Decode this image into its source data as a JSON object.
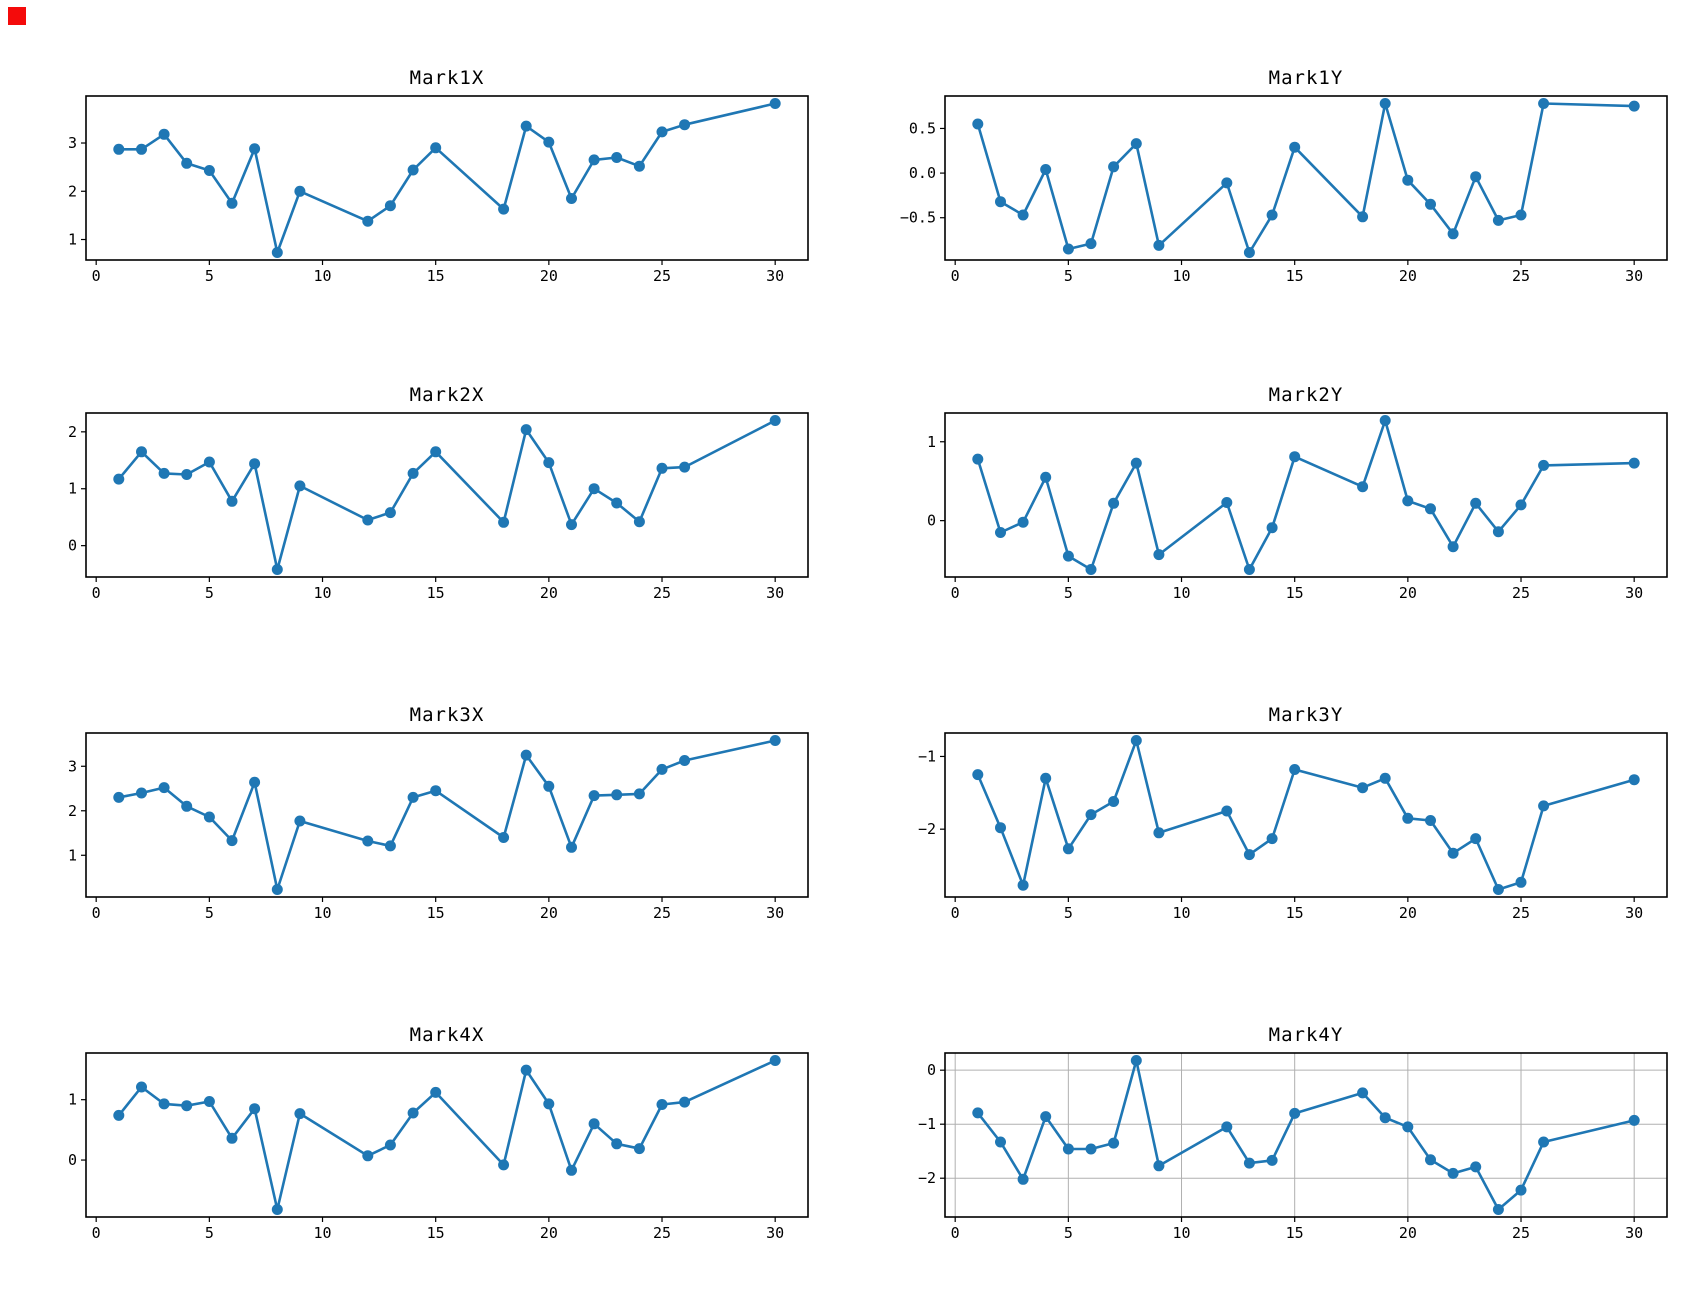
{
  "figure": {
    "background": "#ffffff",
    "line_color": "#1f77b4",
    "marker_color": "#1f77b4",
    "axis_color": "#000000",
    "grid_color": "#b0b0b0",
    "red_marker_color": "#f40b0b"
  },
  "chart_data": [
    {
      "type": "line",
      "title": "Mark1X",
      "x": [
        1,
        2,
        3,
        4,
        5,
        6,
        7,
        8,
        9,
        12,
        13,
        14,
        15,
        18,
        19,
        20,
        21,
        22,
        23,
        24,
        25,
        26,
        30
      ],
      "y": [
        2.87,
        2.87,
        3.18,
        2.58,
        2.43,
        1.75,
        2.88,
        0.73,
        2.0,
        1.38,
        1.7,
        2.44,
        2.9,
        1.63,
        3.35,
        3.02,
        1.85,
        2.65,
        2.7,
        2.52,
        3.23,
        3.38,
        3.82
      ],
      "xlim": [
        -0.45,
        31.45
      ],
      "ylim": [
        0.5755,
        3.9745
      ],
      "x_ticks": [
        0,
        5,
        10,
        15,
        20,
        25,
        30
      ],
      "x_tick_labels": [
        "0",
        "5",
        "10",
        "15",
        "20",
        "25",
        "30"
      ],
      "y_ticks": [
        1,
        2,
        3
      ],
      "y_tick_labels": [
        "1",
        "2",
        "3"
      ],
      "grid": false,
      "legend": null
    },
    {
      "type": "line",
      "title": "Mark1Y",
      "x": [
        1,
        2,
        3,
        4,
        5,
        6,
        7,
        8,
        9,
        12,
        13,
        14,
        15,
        18,
        19,
        20,
        21,
        22,
        23,
        24,
        25,
        26,
        30
      ],
      "y": [
        0.55,
        -0.32,
        -0.47,
        0.04,
        -0.85,
        -0.79,
        0.07,
        0.33,
        -0.81,
        -0.11,
        -0.89,
        -0.47,
        0.29,
        -0.49,
        0.78,
        -0.08,
        -0.35,
        -0.68,
        -0.04,
        -0.53,
        -0.47,
        0.78,
        0.75
      ],
      "xlim": [
        -0.45,
        31.45
      ],
      "ylim": [
        -0.9735,
        0.8635
      ],
      "x_ticks": [
        0,
        5,
        10,
        15,
        20,
        25,
        30
      ],
      "x_tick_labels": [
        "0",
        "5",
        "10",
        "15",
        "20",
        "25",
        "30"
      ],
      "y_ticks": [
        0.5,
        0.0,
        -0.5
      ],
      "y_tick_labels": [
        "0.5",
        "0.0",
        "−0.5"
      ],
      "grid": false,
      "legend": null
    },
    {
      "type": "line",
      "title": "Mark2X",
      "x": [
        1,
        2,
        3,
        4,
        5,
        6,
        7,
        8,
        9,
        12,
        13,
        14,
        15,
        18,
        19,
        20,
        21,
        22,
        23,
        24,
        25,
        26,
        30
      ],
      "y": [
        1.17,
        1.65,
        1.27,
        1.25,
        1.47,
        0.78,
        1.44,
        -0.42,
        1.05,
        0.45,
        0.58,
        1.27,
        1.65,
        0.41,
        2.04,
        1.46,
        0.37,
        1.0,
        0.75,
        0.42,
        1.36,
        1.38,
        2.2
      ],
      "xlim": [
        -0.45,
        31.45
      ],
      "ylim": [
        -0.551,
        2.331
      ],
      "x_ticks": [
        0,
        5,
        10,
        15,
        20,
        25,
        30
      ],
      "x_tick_labels": [
        "0",
        "5",
        "10",
        "15",
        "20",
        "25",
        "30"
      ],
      "y_ticks": [
        0,
        1,
        2
      ],
      "y_tick_labels": [
        "0",
        "1",
        "2"
      ],
      "grid": false,
      "legend": null
    },
    {
      "type": "line",
      "title": "Mark2Y",
      "x": [
        1,
        2,
        3,
        4,
        5,
        6,
        7,
        8,
        9,
        12,
        13,
        14,
        15,
        18,
        19,
        20,
        21,
        22,
        23,
        24,
        25,
        26,
        30
      ],
      "y": [
        0.78,
        -0.15,
        -0.02,
        0.55,
        -0.45,
        -0.62,
        0.22,
        0.73,
        -0.43,
        0.23,
        -0.62,
        -0.09,
        0.81,
        0.43,
        1.27,
        0.25,
        0.15,
        -0.33,
        0.22,
        -0.14,
        0.2,
        0.7,
        0.73
      ],
      "xlim": [
        -0.45,
        31.45
      ],
      "ylim": [
        -0.7145,
        1.3645
      ],
      "x_ticks": [
        0,
        5,
        10,
        15,
        20,
        25,
        30
      ],
      "x_tick_labels": [
        "0",
        "5",
        "10",
        "15",
        "20",
        "25",
        "30"
      ],
      "y_ticks": [
        0,
        1
      ],
      "y_tick_labels": [
        "0",
        "1"
      ],
      "grid": false,
      "legend": null
    },
    {
      "type": "line",
      "title": "Mark3X",
      "x": [
        1,
        2,
        3,
        4,
        5,
        6,
        7,
        8,
        9,
        12,
        13,
        14,
        15,
        18,
        19,
        20,
        21,
        22,
        23,
        24,
        25,
        26,
        30
      ],
      "y": [
        2.3,
        2.4,
        2.52,
        2.1,
        1.86,
        1.33,
        2.64,
        0.23,
        1.77,
        1.32,
        1.21,
        2.3,
        2.45,
        1.4,
        3.25,
        2.55,
        1.18,
        2.34,
        2.36,
        2.38,
        2.93,
        3.13,
        3.58
      ],
      "xlim": [
        -0.45,
        31.45
      ],
      "ylim": [
        0.0625,
        3.7475
      ],
      "x_ticks": [
        0,
        5,
        10,
        15,
        20,
        25,
        30
      ],
      "x_tick_labels": [
        "0",
        "5",
        "10",
        "15",
        "20",
        "25",
        "30"
      ],
      "y_ticks": [
        1,
        2,
        3
      ],
      "y_tick_labels": [
        "1",
        "2",
        "3"
      ],
      "grid": false,
      "legend": null
    },
    {
      "type": "line",
      "title": "Mark3Y",
      "x": [
        1,
        2,
        3,
        4,
        5,
        6,
        7,
        8,
        9,
        12,
        13,
        14,
        15,
        18,
        19,
        20,
        21,
        22,
        23,
        24,
        25,
        26,
        30
      ],
      "y": [
        -1.25,
        -1.98,
        -2.77,
        -1.3,
        -2.27,
        -1.8,
        -1.62,
        -0.78,
        -2.05,
        -1.75,
        -2.35,
        -2.13,
        -1.18,
        -1.43,
        -1.3,
        -1.85,
        -1.88,
        -2.33,
        -2.13,
        -2.83,
        -2.73,
        -1.68,
        -1.32
      ],
      "xlim": [
        -0.45,
        31.45
      ],
      "ylim": [
        -2.9325,
        -0.6775
      ],
      "x_ticks": [
        0,
        5,
        10,
        15,
        20,
        25,
        30
      ],
      "x_tick_labels": [
        "0",
        "5",
        "10",
        "15",
        "20",
        "25",
        "30"
      ],
      "y_ticks": [
        -1,
        -2
      ],
      "y_tick_labels": [
        "−1",
        "−2"
      ],
      "grid": false,
      "legend": null
    },
    {
      "type": "line",
      "title": "Mark4X",
      "x": [
        1,
        2,
        3,
        4,
        5,
        6,
        7,
        8,
        9,
        12,
        13,
        14,
        15,
        18,
        19,
        20,
        21,
        22,
        23,
        24,
        25,
        26,
        30
      ],
      "y": [
        0.74,
        1.21,
        0.93,
        0.9,
        0.97,
        0.36,
        0.85,
        -0.82,
        0.77,
        0.07,
        0.25,
        0.78,
        1.12,
        -0.08,
        1.49,
        0.93,
        -0.17,
        0.6,
        0.27,
        0.19,
        0.92,
        0.96,
        1.65
      ],
      "xlim": [
        -0.45,
        31.45
      ],
      "ylim": [
        -0.9435,
        1.7735
      ],
      "x_ticks": [
        0,
        5,
        10,
        15,
        20,
        25,
        30
      ],
      "x_tick_labels": [
        "0",
        "5",
        "10",
        "15",
        "20",
        "25",
        "30"
      ],
      "y_ticks": [
        0,
        1
      ],
      "y_tick_labels": [
        "0",
        "1"
      ],
      "grid": false,
      "legend": null
    },
    {
      "type": "line",
      "title": "Mark4Y",
      "x": [
        1,
        2,
        3,
        4,
        5,
        6,
        7,
        8,
        9,
        12,
        13,
        14,
        15,
        18,
        19,
        20,
        21,
        22,
        23,
        24,
        25,
        26,
        30
      ],
      "y": [
        -0.79,
        -1.33,
        -2.02,
        -0.86,
        -1.46,
        -1.46,
        -1.35,
        0.18,
        -1.77,
        -1.05,
        -1.72,
        -1.67,
        -0.8,
        -0.42,
        -0.88,
        -1.05,
        -1.66,
        -1.91,
        -1.79,
        -2.58,
        -2.22,
        -1.33,
        -0.93
      ],
      "xlim": [
        -0.45,
        31.45
      ],
      "ylim": [
        -2.718,
        0.318
      ],
      "x_ticks": [
        0,
        5,
        10,
        15,
        20,
        25,
        30
      ],
      "x_tick_labels": [
        "0",
        "5",
        "10",
        "15",
        "20",
        "25",
        "30"
      ],
      "y_ticks": [
        0,
        -1,
        -2
      ],
      "y_tick_labels": [
        "0",
        "−1",
        "−2"
      ],
      "grid": true,
      "legend": null
    }
  ]
}
